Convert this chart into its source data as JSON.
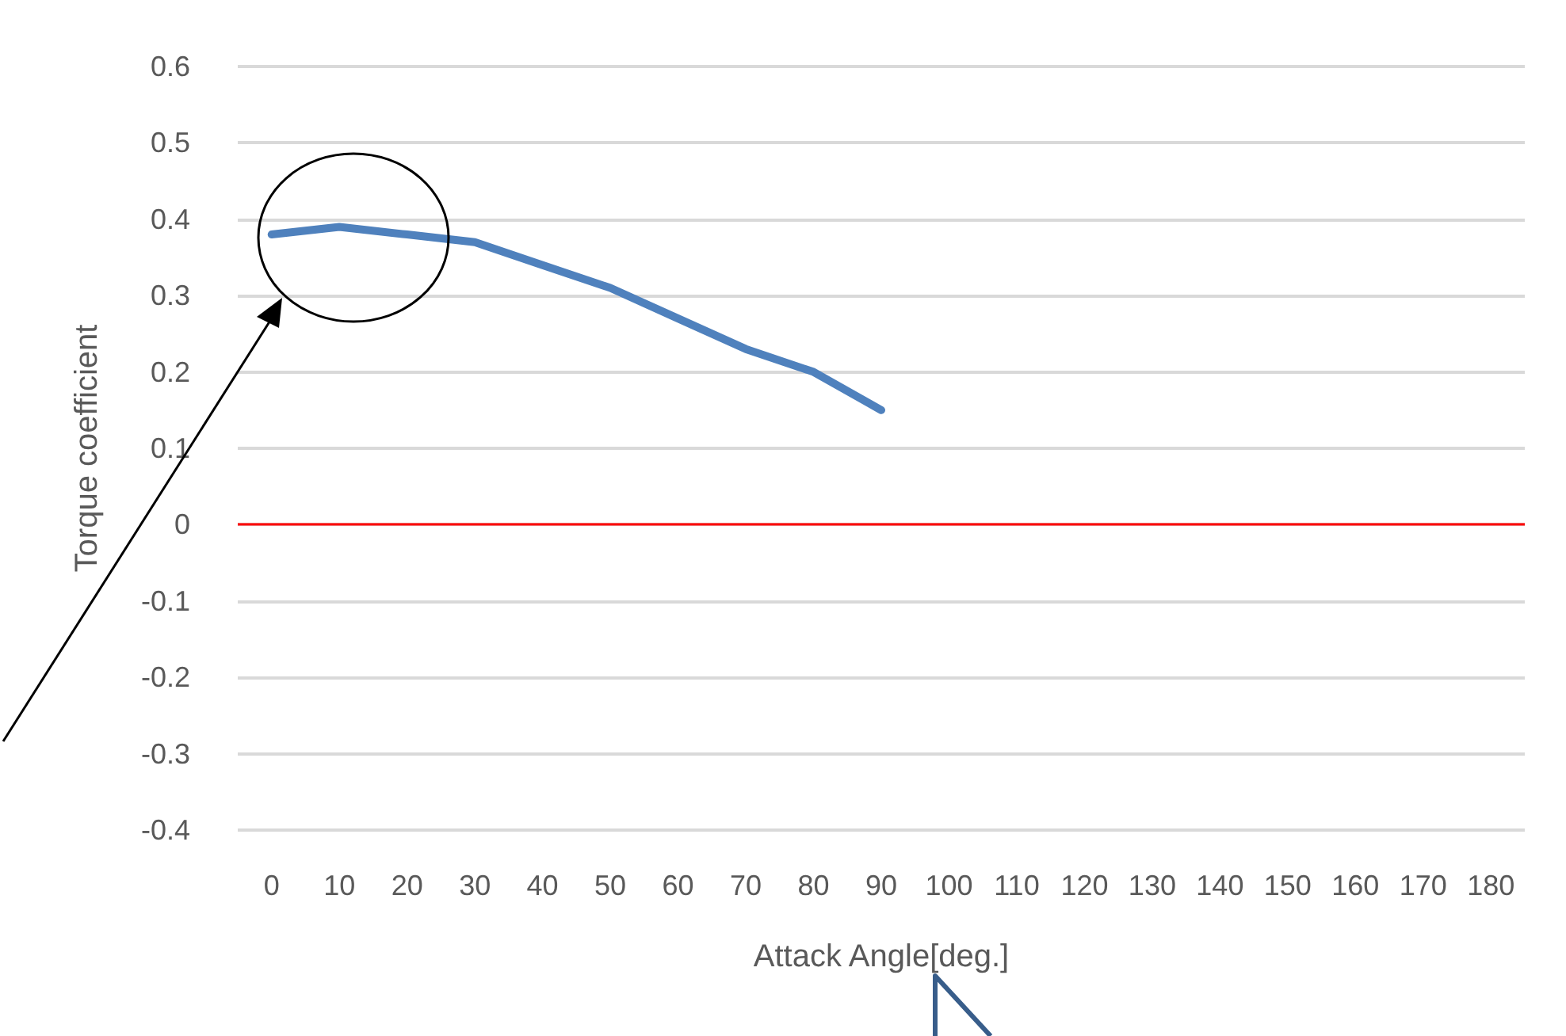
{
  "chart_data": {
    "type": "line",
    "xlabel": "Attack Angle[deg.]",
    "ylabel": "Torque coefficient",
    "categories": [
      "0",
      "10",
      "20",
      "30",
      "40",
      "50",
      "60",
      "70",
      "80",
      "90",
      "100",
      "110",
      "120",
      "130",
      "140",
      "150",
      "160",
      "170",
      "180"
    ],
    "series": [
      {
        "color": "#4f81bd",
        "values": [
          0.38,
          0.39,
          0.38,
          0.37,
          0.34,
          0.31,
          0.27,
          0.23,
          0.2,
          0.15,
          null,
          null,
          null,
          null,
          null,
          null,
          null,
          null,
          null
        ]
      }
    ],
    "ylim": [
      -0.4,
      0.6
    ],
    "yticks": [
      -0.4,
      -0.3,
      -0.2,
      -0.1,
      0,
      0.1,
      0.2,
      0.3,
      0.4,
      0.5,
      0.6
    ],
    "ref_lines": [
      {
        "axis": "y",
        "value": 0,
        "color": "#ff0000"
      }
    ],
    "grid": "y",
    "marker": "none",
    "line_style": "solid"
  }
}
